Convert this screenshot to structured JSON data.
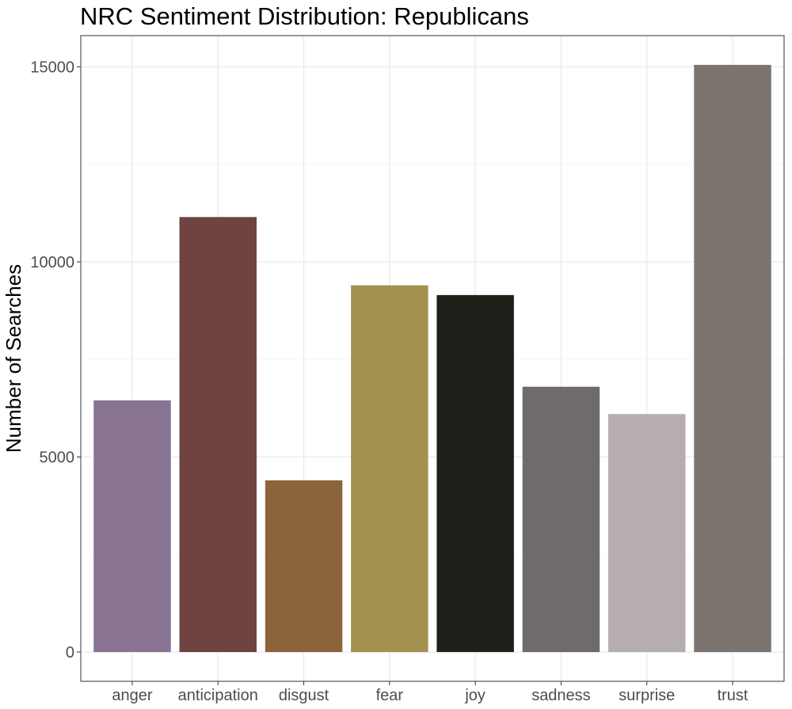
{
  "chart_data": {
    "type": "bar",
    "title": "NRC Sentiment Distribution: Republicans",
    "xlabel": "",
    "ylabel": "Number of Searches",
    "categories": [
      "anger",
      "anticipation",
      "disgust",
      "fear",
      "joy",
      "sadness",
      "surprise",
      "trust"
    ],
    "values": [
      6450,
      11150,
      4400,
      9400,
      9150,
      6800,
      6100,
      15050
    ],
    "colors": [
      "#887393",
      "#6f4340",
      "#8b643b",
      "#a3914f",
      "#211f19",
      "#6f6a6b",
      "#b6adae",
      "#7c746e"
    ],
    "ylim": [
      -750,
      15800
    ],
    "yticks": [
      0,
      5000,
      10000,
      15000
    ],
    "ytick_labels": [
      "0",
      "5000",
      "10000",
      "15000"
    ],
    "grid": true,
    "legend": "none"
  }
}
